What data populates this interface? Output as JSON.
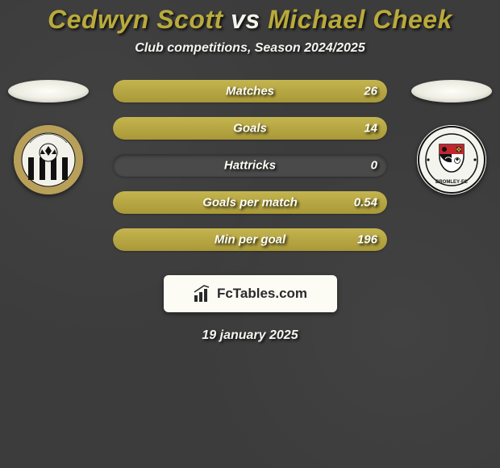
{
  "title": {
    "player_a": "Cedwyn Scott",
    "vs": "vs",
    "player_b": "Michael Cheek",
    "color_a": "#b9aa3c",
    "color_vs": "#f5f5ed",
    "color_b": "#b9aa3c",
    "fontsize": 32
  },
  "subtitle": "Club competitions, Season 2024/2025",
  "avatar": {
    "oval_bg": "#fefef8"
  },
  "clubs": {
    "left": {
      "name": "Notts County",
      "badge_bg": "#b8a05a",
      "stripes": [
        "#111111",
        "#f2f2ea"
      ],
      "ball_color": "#111111"
    },
    "right": {
      "name": "Bromley FC",
      "badge_bg": "#f4f4ee",
      "shield_top": "#c1272d",
      "shield_bottom_left": "#111111",
      "shield_bottom_right": "#f4f4ee",
      "accent": "#111111",
      "text": "BROMLEY·FC"
    }
  },
  "stats": [
    {
      "label": "Matches",
      "a": "",
      "b": "26",
      "fill_a_pct": 0,
      "fill_b_pct": 100
    },
    {
      "label": "Goals",
      "a": "",
      "b": "14",
      "fill_a_pct": 0,
      "fill_b_pct": 100
    },
    {
      "label": "Hattricks",
      "a": "",
      "b": "0",
      "fill_a_pct": 0,
      "fill_b_pct": 0
    },
    {
      "label": "Goals per match",
      "a": "",
      "b": "0.54",
      "fill_a_pct": 0,
      "fill_b_pct": 100
    },
    {
      "label": "Min per goal",
      "a": "",
      "b": "196",
      "fill_a_pct": 0,
      "fill_b_pct": 100
    }
  ],
  "bar_style": {
    "fill_color": "#b9aa3c",
    "track_color": "#4a4a4a",
    "label_color": "#fdfdf5",
    "label_fontsize": 15
  },
  "brand": {
    "icon_name": "bar-chart-icon",
    "text": "FcTables.com",
    "bg": "#fcfcf5",
    "text_color": "#2a2a2a"
  },
  "date": "19 january 2025",
  "background_color": "#3c3c3c"
}
